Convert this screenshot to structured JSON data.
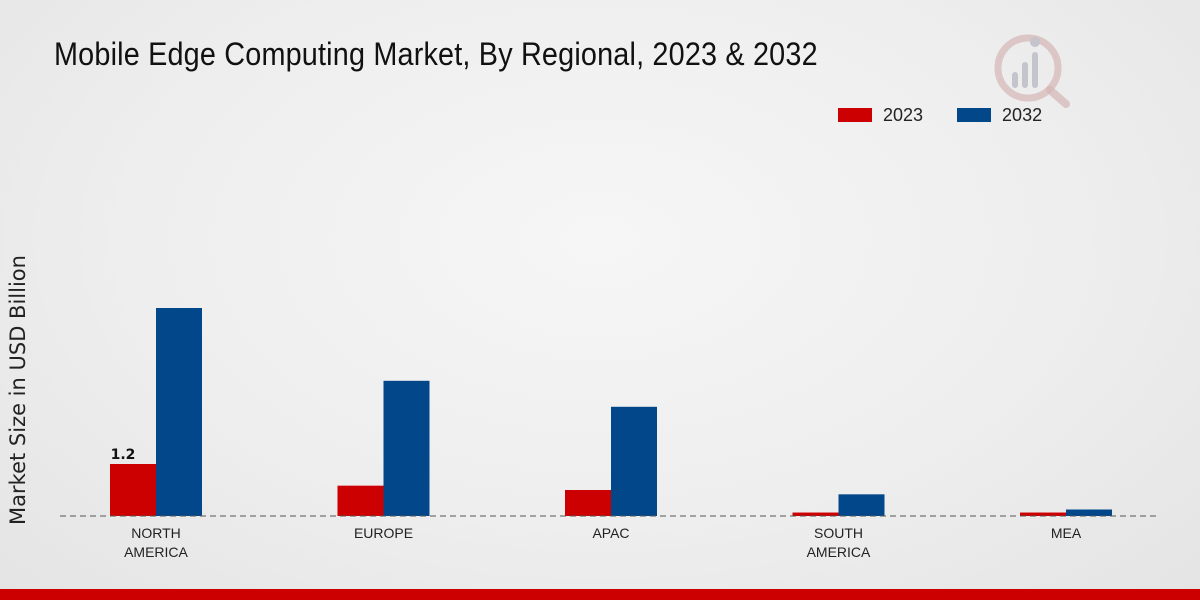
{
  "page": {
    "title": "Mobile Edge Computing Market, By Regional, 2023 & 2032"
  },
  "colors": {
    "series_2023": "#cc0000",
    "series_2032": "#02478a",
    "baseline": "#555555",
    "bottom_bar": "#cc0000"
  },
  "chart_data": {
    "type": "bar",
    "title": "Mobile Edge Computing Market, By Regional, 2023 & 2032",
    "xlabel": "",
    "ylabel": "Market Size in USD Billion",
    "categories": [
      "NORTH AMERICA",
      "EUROPE",
      "APAC",
      "SOUTH AMERICA",
      "MEA"
    ],
    "category_lines": [
      [
        "NORTH",
        "AMERICA"
      ],
      [
        "EUROPE"
      ],
      [
        "APAC"
      ],
      [
        "SOUTH",
        "AMERICA"
      ],
      [
        "MEA"
      ]
    ],
    "series": [
      {
        "name": "2023",
        "values": [
          1.2,
          0.7,
          0.6,
          0.08,
          0.08
        ]
      },
      {
        "name": "2032",
        "values": [
          4.8,
          3.12,
          2.52,
          0.5,
          0.15
        ]
      }
    ],
    "data_labels": [
      {
        "series": 0,
        "category": 0,
        "text": "1.2"
      }
    ],
    "ylim": [
      0,
      6.6
    ],
    "grid": false,
    "legend": "top-right",
    "baseline_style": "dashed"
  }
}
